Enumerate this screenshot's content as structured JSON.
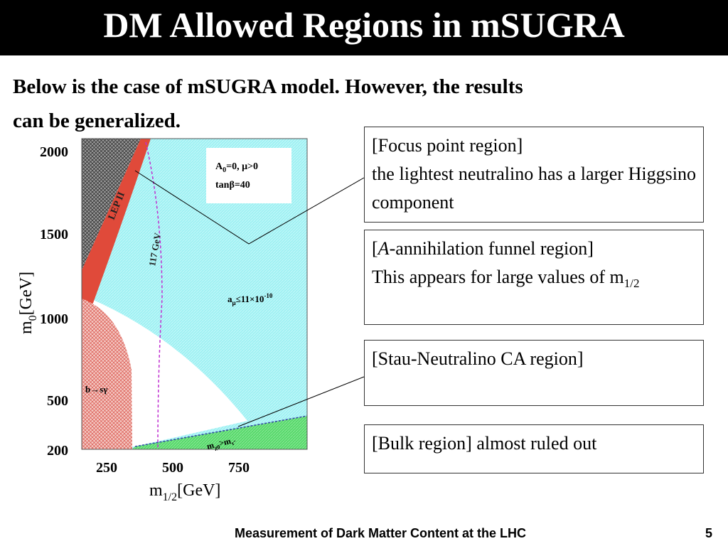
{
  "header": {
    "title": "DM Allowed Regions in mSUGRA"
  },
  "intro": {
    "lines": [
      "Below is the case of mSUGRA model. However, the results",
      "can be generalized."
    ]
  },
  "figure": {
    "y_axis": {
      "label": {
        "main": "m",
        "sub": "0",
        "unit": "[GeV]"
      },
      "ticks": [
        "2000",
        "1500",
        "1000",
        "500",
        "200"
      ]
    },
    "x_axis": {
      "label": {
        "main": "m",
        "sub": "1/2",
        "unit": "[GeV]"
      },
      "ticks": [
        "250",
        "500",
        "750"
      ]
    },
    "annotations": {
      "params_line1": {
        "a": "A",
        "a_sub": "0",
        "rest": "=0,  μ>0"
      },
      "params_line2": "tanβ=40",
      "lep": "LEP II",
      "higgs": "117 GeV",
      "g2": {
        "a": "a",
        "a_sub": "μ",
        "rest": "≤11×10",
        "sup": "-10"
      },
      "bsg": "b→sγ",
      "stau": {
        "m1": "m",
        "m1_sub": "χ0",
        "rest": ">m",
        "m2_sub": "τ̃"
      }
    }
  },
  "boxes": {
    "focus": {
      "heading": "[Focus point region]",
      "body": "the lightest neutralino has a larger Higgsino component"
    },
    "funnel": {
      "open": "[",
      "italic": "A",
      "heading_rest": "-annihilation funnel region]",
      "body": "This appears for large values of m",
      "body_sub": "1/2"
    },
    "coann": {
      "heading": "[Stau-Neutralino CA region]"
    },
    "bulk": {
      "heading": "[Bulk region]",
      "body": " almost ruled out"
    }
  },
  "footer": {
    "text": "Measurement of Dark Matter Content at the LHC",
    "page": "5"
  }
}
